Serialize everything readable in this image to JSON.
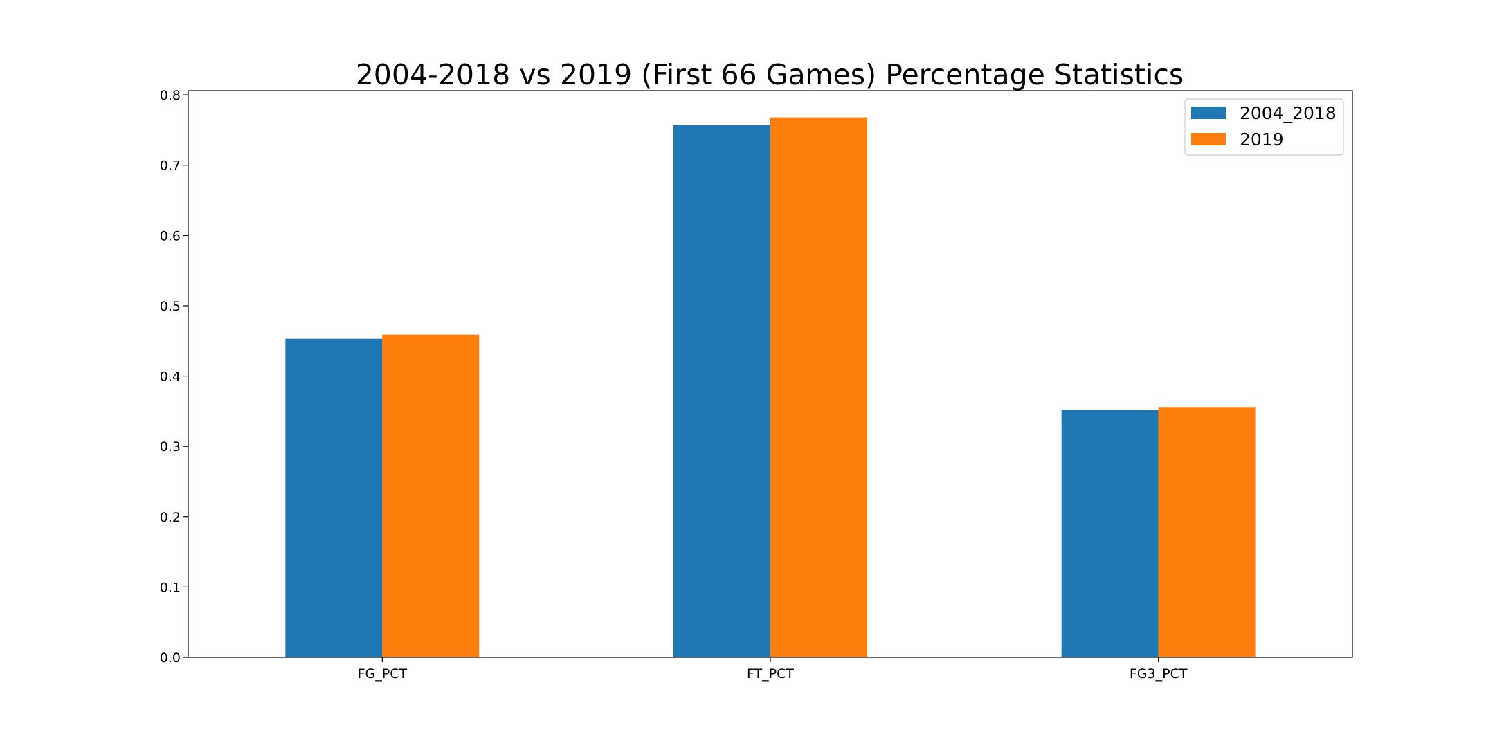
{
  "chart_data": {
    "type": "bar",
    "title": "2004-2018 vs 2019 (First 66 Games) Percentage Statistics",
    "xlabel": "",
    "ylabel": "",
    "categories": [
      "FG_PCT",
      "FT_PCT",
      "FG3_PCT"
    ],
    "series": [
      {
        "name": "2004_2018",
        "values": [
          0.453,
          0.757,
          0.352
        ],
        "color": "#1f77b4"
      },
      {
        "name": "2019",
        "values": [
          0.459,
          0.768,
          0.356
        ],
        "color": "#ff7f0e"
      }
    ],
    "ylim": [
      0,
      0.806
    ],
    "yticks": [
      "0.0",
      "0.1",
      "0.2",
      "0.3",
      "0.4",
      "0.5",
      "0.6",
      "0.7",
      "0.8"
    ],
    "grid": false,
    "legend": "top-right"
  }
}
